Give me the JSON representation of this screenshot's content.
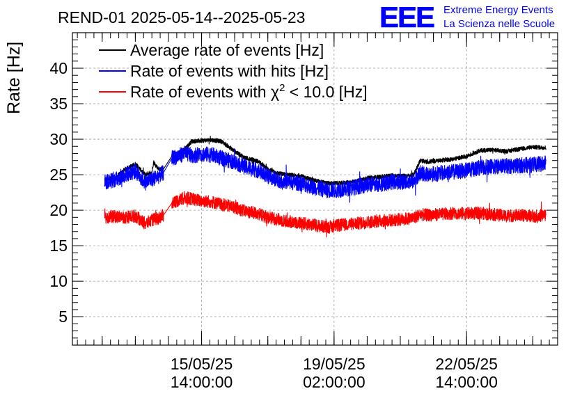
{
  "chart_data": {
    "type": "line",
    "title": "REND-01 2025-05-14--2025-05-23",
    "ylabel": "Rate [Hz]",
    "xlabel": "",
    "ylim": [
      1,
      45
    ],
    "yticks": [
      5,
      10,
      15,
      20,
      25,
      30,
      35,
      40
    ],
    "grid": true,
    "legend_position": "top-left",
    "x_ticks": [
      {
        "x": 1.0,
        "date": "15/05/25",
        "time": "14:00:00"
      },
      {
        "x": 5.0,
        "date": "19/05/25",
        "time": "02:00:00"
      },
      {
        "x": 9.0,
        "date": "22/05/25",
        "time": "14:00:00"
      }
    ],
    "xlim": [
      -2.9,
      11.75
    ],
    "legend": [
      {
        "label_pre": "Average rate of events [Hz]",
        "label_sup": "",
        "label_post": "",
        "color": "#000000"
      },
      {
        "label_pre": "Rate of events with hits [Hz]",
        "label_sup": "",
        "label_post": "",
        "color": "#0000ff"
      },
      {
        "label_pre": "Rate of events with χ",
        "label_sup": "2",
        "label_post": " < 10.0 [Hz]",
        "color": "#ff0000"
      }
    ],
    "series": [
      {
        "name": "Average rate of events [Hz]",
        "color": "#000000",
        "noise": 0.6,
        "points": [
          [
            -1.93,
            24.3
          ],
          [
            -1.6,
            24.6
          ],
          [
            -1.3,
            25.8
          ],
          [
            -1.0,
            26.5
          ],
          [
            -0.7,
            25.0
          ],
          [
            -0.5,
            25.4
          ],
          [
            -0.3,
            25.8
          ],
          [
            -0.45,
            26.8
          ],
          [
            -0.15,
            25.8
          ],
          [
            0.1,
            27.6
          ],
          [
            0.5,
            28.6
          ],
          [
            0.7,
            29.7
          ],
          [
            1.0,
            29.8
          ],
          [
            1.3,
            29.9
          ],
          [
            1.6,
            29.7
          ],
          [
            2.0,
            28.3
          ],
          [
            2.3,
            27.4
          ],
          [
            2.7,
            26.9
          ],
          [
            3.0,
            25.8
          ],
          [
            3.3,
            25.2
          ],
          [
            3.6,
            25.0
          ],
          [
            4.0,
            24.8
          ],
          [
            4.4,
            24.2
          ],
          [
            4.8,
            23.8
          ],
          [
            5.2,
            23.8
          ],
          [
            5.6,
            24.0
          ],
          [
            6.0,
            24.5
          ],
          [
            6.4,
            24.7
          ],
          [
            6.8,
            24.9
          ],
          [
            7.2,
            24.8
          ],
          [
            7.4,
            25.0
          ],
          [
            7.6,
            27.0
          ],
          [
            7.8,
            26.8
          ],
          [
            8.2,
            27.0
          ],
          [
            8.6,
            27.2
          ],
          [
            9.0,
            27.6
          ],
          [
            9.4,
            28.4
          ],
          [
            9.8,
            28.5
          ],
          [
            10.2,
            28.3
          ],
          [
            10.6,
            28.6
          ],
          [
            11.0,
            28.9
          ],
          [
            11.4,
            28.8
          ]
        ]
      },
      {
        "name": "Rate of events with hits [Hz]",
        "color": "#0000ff",
        "noise": 2.2,
        "points": [
          [
            -1.93,
            24.0
          ],
          [
            -1.6,
            24.3
          ],
          [
            -1.3,
            25.0
          ],
          [
            -1.0,
            25.5
          ],
          [
            -0.7,
            23.9
          ],
          [
            -0.5,
            24.4
          ],
          [
            -0.3,
            24.8
          ],
          [
            -0.15,
            25.3
          ],
          [
            0.1,
            27.3
          ],
          [
            0.5,
            28.0
          ],
          [
            0.7,
            27.7
          ],
          [
            1.0,
            27.9
          ],
          [
            1.3,
            27.8
          ],
          [
            1.6,
            27.3
          ],
          [
            2.0,
            26.8
          ],
          [
            2.3,
            26.1
          ],
          [
            2.7,
            25.6
          ],
          [
            3.0,
            24.8
          ],
          [
            3.3,
            24.3
          ],
          [
            3.6,
            24.0
          ],
          [
            4.0,
            23.8
          ],
          [
            4.4,
            23.2
          ],
          [
            4.8,
            22.8
          ],
          [
            5.2,
            22.9
          ],
          [
            5.6,
            23.2
          ],
          [
            6.0,
            23.6
          ],
          [
            6.4,
            23.7
          ],
          [
            6.8,
            24.0
          ],
          [
            7.2,
            24.0
          ],
          [
            7.4,
            24.1
          ],
          [
            7.6,
            25.3
          ],
          [
            7.8,
            25.0
          ],
          [
            8.2,
            25.2
          ],
          [
            8.6,
            25.4
          ],
          [
            9.0,
            25.6
          ],
          [
            9.4,
            26.0
          ],
          [
            9.8,
            26.1
          ],
          [
            10.2,
            26.2
          ],
          [
            10.6,
            26.3
          ],
          [
            11.0,
            26.4
          ],
          [
            11.4,
            26.6
          ]
        ]
      },
      {
        "name": "Rate of events with χ² < 10.0 [Hz]",
        "color": "#ff0000",
        "noise": 1.8,
        "points": [
          [
            -1.93,
            19.0
          ],
          [
            -1.6,
            19.1
          ],
          [
            -1.3,
            19.0
          ],
          [
            -1.0,
            19.2
          ],
          [
            -0.7,
            18.1
          ],
          [
            -0.5,
            18.6
          ],
          [
            -0.3,
            18.9
          ],
          [
            -0.15,
            19.3
          ],
          [
            0.1,
            21.0
          ],
          [
            0.5,
            21.8
          ],
          [
            0.7,
            21.6
          ],
          [
            1.0,
            21.3
          ],
          [
            1.3,
            21.2
          ],
          [
            1.6,
            20.8
          ],
          [
            2.0,
            20.4
          ],
          [
            2.3,
            19.9
          ],
          [
            2.7,
            19.5
          ],
          [
            3.0,
            19.0
          ],
          [
            3.3,
            18.7
          ],
          [
            3.6,
            18.4
          ],
          [
            4.0,
            18.2
          ],
          [
            4.4,
            17.9
          ],
          [
            4.8,
            17.6
          ],
          [
            5.2,
            17.9
          ],
          [
            5.6,
            18.1
          ],
          [
            6.0,
            18.3
          ],
          [
            6.4,
            18.5
          ],
          [
            6.8,
            18.6
          ],
          [
            7.2,
            18.8
          ],
          [
            7.4,
            18.9
          ],
          [
            7.6,
            19.4
          ],
          [
            7.8,
            19.3
          ],
          [
            8.2,
            19.4
          ],
          [
            8.6,
            19.6
          ],
          [
            9.0,
            19.5
          ],
          [
            9.4,
            19.6
          ],
          [
            9.8,
            19.4
          ],
          [
            10.2,
            19.2
          ],
          [
            10.6,
            19.3
          ],
          [
            11.0,
            19.2
          ],
          [
            11.4,
            19.3
          ]
        ]
      }
    ]
  },
  "logo": {
    "letters": "EEE",
    "line1": "Extreme Energy Events",
    "line2": "La Scienza nelle Scuole",
    "color": "#0000ff"
  }
}
